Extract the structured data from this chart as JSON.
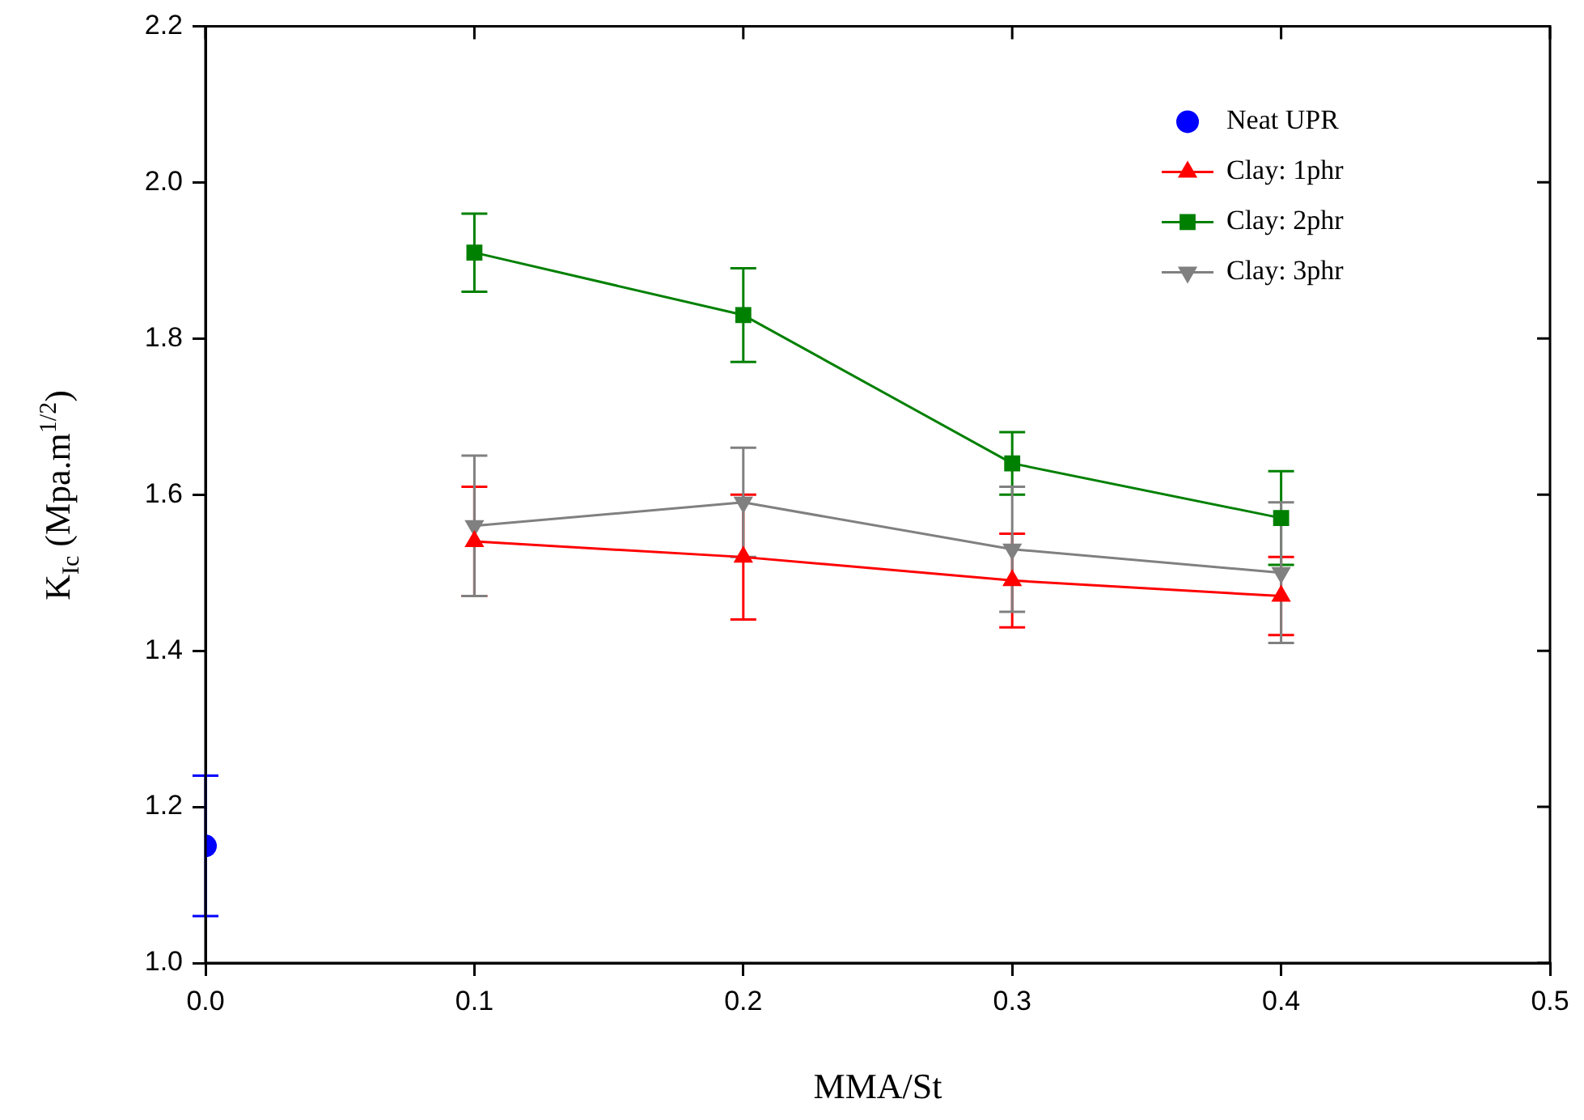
{
  "chart_data": {
    "type": "line",
    "xlabel": "MMA/St",
    "ylabel": "K$_{Ic}$ (Mpa.m$^{1/2}$)",
    "xlim": [
      0,
      0.5
    ],
    "xticks": [
      {
        "value": 0,
        "label": "0.0"
      },
      0.1,
      0.2,
      0.3,
      0.4,
      0.5
    ],
    "ylim": [
      1.0,
      2.2
    ],
    "yticks": [
      {
        "value": 1.0,
        "label": "1.0"
      },
      1.2,
      1.4,
      1.6,
      1.8,
      {
        "value": 2.0,
        "label": "2.0"
      },
      2.2
    ],
    "grid": false,
    "legend": "top right",
    "series": [
      {
        "name": "Neat UPR",
        "type": "scatter",
        "marker": "circle",
        "color": "#0000ff",
        "x": [
          0
        ],
        "values": [
          1.15
        ],
        "errors": [
          0.09
        ]
      },
      {
        "name": "Clay: 1phr",
        "marker": "triangle",
        "color": "#ff0000",
        "x": [
          0.1,
          0.2,
          0.3,
          0.4
        ],
        "values": [
          1.54,
          1.52,
          1.49,
          1.47
        ],
        "errors": [
          0.07,
          0.08,
          0.06,
          0.05
        ]
      },
      {
        "name": "Clay: 2phr",
        "marker": "square",
        "color": "#008000",
        "x": [
          0.1,
          0.2,
          0.3,
          0.4
        ],
        "values": [
          1.91,
          1.83,
          1.64,
          1.57
        ],
        "errors": [
          0.05,
          0.06,
          0.04,
          0.06
        ]
      },
      {
        "name": "Clay: 3phr",
        "marker": "triangle-down",
        "color": "#808080",
        "x": [
          0.1,
          0.2,
          0.3,
          0.4
        ],
        "values": [
          1.56,
          1.59,
          1.53,
          1.5
        ],
        "errors": [
          0.09,
          0.07,
          0.08,
          0.09
        ]
      }
    ]
  }
}
